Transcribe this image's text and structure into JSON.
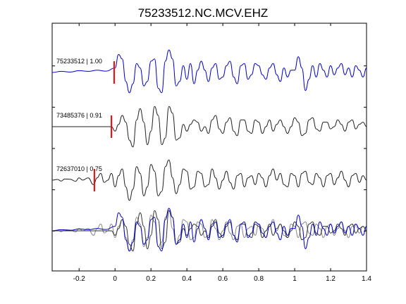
{
  "chart_data": {
    "type": "line",
    "title": "75233512.NC.MCV.EHZ",
    "xlabel": "",
    "ylabel": "",
    "xlim": [
      -0.35,
      1.4
    ],
    "grid": false,
    "x_ticks": [
      -0.2,
      0,
      0.2,
      0.4,
      0.6,
      0.8,
      1,
      1.2,
      1.4
    ],
    "x_tick_labels": [
      "-0.2",
      "0",
      "0.2",
      "0.4",
      "0.6",
      "0.8",
      "1",
      "1.2",
      "1.4"
    ],
    "series": [
      {
        "label": "75233512 | 1.00",
        "color": "#0000cc",
        "pick_time": -0.005,
        "samples": [
          [
            -0.35,
            0.0
          ],
          [
            -0.3,
            0.05
          ],
          [
            -0.25,
            0.02
          ],
          [
            -0.2,
            0.08
          ],
          [
            -0.15,
            0.05
          ],
          [
            -0.1,
            0.1
          ],
          [
            -0.05,
            0.06
          ],
          [
            0.0,
            0.2
          ],
          [
            0.02,
            0.8
          ],
          [
            0.04,
            0.6
          ],
          [
            0.06,
            -0.4
          ],
          [
            0.08,
            -0.9
          ],
          [
            0.1,
            -0.5
          ],
          [
            0.12,
            0.4
          ],
          [
            0.14,
            0.2
          ],
          [
            0.16,
            -0.6
          ],
          [
            0.18,
            -0.4
          ],
          [
            0.2,
            0.5
          ],
          [
            0.22,
            0.6
          ],
          [
            0.24,
            -0.7
          ],
          [
            0.26,
            -0.9
          ],
          [
            0.28,
            0.5
          ],
          [
            0.3,
            1.0
          ],
          [
            0.32,
            0.6
          ],
          [
            0.34,
            -0.6
          ],
          [
            0.36,
            -0.4
          ],
          [
            0.38,
            0.3
          ],
          [
            0.4,
            -0.3
          ],
          [
            0.42,
            0.4
          ],
          [
            0.44,
            -0.5
          ],
          [
            0.46,
            0.1
          ],
          [
            0.48,
            0.5
          ],
          [
            0.5,
            0.1
          ],
          [
            0.52,
            -0.4
          ],
          [
            0.54,
            0.2
          ],
          [
            0.56,
            0.4
          ],
          [
            0.58,
            -0.3
          ],
          [
            0.6,
            -0.2
          ],
          [
            0.62,
            0.3
          ],
          [
            0.64,
            0.5
          ],
          [
            0.66,
            -0.2
          ],
          [
            0.68,
            -0.5
          ],
          [
            0.7,
            0.3
          ],
          [
            0.72,
            0.4
          ],
          [
            0.74,
            -0.3
          ],
          [
            0.76,
            -0.1
          ],
          [
            0.78,
            0.4
          ],
          [
            0.8,
            0.3
          ],
          [
            0.82,
            -0.1
          ],
          [
            0.84,
            -0.3
          ],
          [
            0.86,
            0.2
          ],
          [
            0.88,
            0.4
          ],
          [
            0.9,
            -0.1
          ],
          [
            0.92,
            -0.4
          ],
          [
            0.94,
            0.2
          ],
          [
            0.96,
            -0.2
          ],
          [
            0.98,
            0.1
          ],
          [
            1.0,
            0.1
          ],
          [
            1.02,
            0.7
          ],
          [
            1.04,
            0.2
          ],
          [
            1.06,
            -0.8
          ],
          [
            1.08,
            -0.3
          ],
          [
            1.1,
            0.3
          ],
          [
            1.12,
            -0.2
          ],
          [
            1.14,
            0.4
          ],
          [
            1.16,
            0.1
          ],
          [
            1.18,
            -0.2
          ],
          [
            1.2,
            0.3
          ],
          [
            1.22,
            -0.1
          ],
          [
            1.24,
            0.2
          ],
          [
            1.26,
            0.4
          ],
          [
            1.28,
            -0.1
          ],
          [
            1.3,
            0.2
          ],
          [
            1.32,
            -0.2
          ],
          [
            1.34,
            0.3
          ],
          [
            1.36,
            0.1
          ],
          [
            1.38,
            -0.2
          ],
          [
            1.4,
            0.2
          ]
        ]
      },
      {
        "label": "73485376 | 0.91",
        "color": "#222222",
        "pick_time": -0.02,
        "samples": [
          [
            -0.35,
            0.0
          ],
          [
            -0.3,
            0.0
          ],
          [
            -0.25,
            0.0
          ],
          [
            -0.2,
            0.0
          ],
          [
            -0.15,
            0.0
          ],
          [
            -0.1,
            0.0
          ],
          [
            -0.05,
            0.0
          ],
          [
            -0.02,
            0.0
          ],
          [
            0.0,
            -0.2
          ],
          [
            0.02,
            0.1
          ],
          [
            0.04,
            0.5
          ],
          [
            0.06,
            0.2
          ],
          [
            0.08,
            -0.6
          ],
          [
            0.1,
            -0.9
          ],
          [
            0.12,
            0.3
          ],
          [
            0.14,
            0.8
          ],
          [
            0.16,
            0.2
          ],
          [
            0.18,
            -0.8
          ],
          [
            0.2,
            -0.2
          ],
          [
            0.22,
            0.9
          ],
          [
            0.24,
            0.5
          ],
          [
            0.26,
            -0.8
          ],
          [
            0.28,
            -0.5
          ],
          [
            0.3,
            0.9
          ],
          [
            0.32,
            0.6
          ],
          [
            0.34,
            -0.6
          ],
          [
            0.36,
            -0.5
          ],
          [
            0.38,
            0.1
          ],
          [
            0.4,
            -0.2
          ],
          [
            0.42,
            0.1
          ],
          [
            0.44,
            0.3
          ],
          [
            0.46,
            0.2
          ],
          [
            0.48,
            -0.2
          ],
          [
            0.5,
            0.0
          ],
          [
            0.52,
            -0.3
          ],
          [
            0.54,
            0.3
          ],
          [
            0.56,
            0.5
          ],
          [
            0.58,
            -0.1
          ],
          [
            0.6,
            -0.3
          ],
          [
            0.62,
            0.2
          ],
          [
            0.64,
            0.4
          ],
          [
            0.66,
            -0.2
          ],
          [
            0.68,
            -0.4
          ],
          [
            0.7,
            0.3
          ],
          [
            0.72,
            0.3
          ],
          [
            0.74,
            -0.2
          ],
          [
            0.76,
            -0.3
          ],
          [
            0.78,
            0.3
          ],
          [
            0.8,
            0.2
          ],
          [
            0.82,
            -0.3
          ],
          [
            0.84,
            0.0
          ],
          [
            0.86,
            0.3
          ],
          [
            0.88,
            -0.2
          ],
          [
            0.9,
            0.1
          ],
          [
            0.92,
            0.3
          ],
          [
            0.94,
            0.0
          ],
          [
            0.96,
            -0.3
          ],
          [
            0.98,
            0.0
          ],
          [
            1.0,
            0.4
          ],
          [
            1.02,
            0.2
          ],
          [
            1.04,
            -0.4
          ],
          [
            1.06,
            -0.3
          ],
          [
            1.08,
            0.3
          ],
          [
            1.1,
            0.4
          ],
          [
            1.12,
            -0.1
          ],
          [
            1.14,
            -0.2
          ],
          [
            1.16,
            0.2
          ],
          [
            1.18,
            0.2
          ],
          [
            1.2,
            -0.1
          ],
          [
            1.22,
            0.0
          ],
          [
            1.24,
            0.3
          ],
          [
            1.26,
            0.1
          ],
          [
            1.28,
            -0.2
          ],
          [
            1.3,
            0.2
          ],
          [
            1.32,
            0.3
          ],
          [
            1.34,
            -0.1
          ],
          [
            1.36,
            0.1
          ],
          [
            1.38,
            0.2
          ],
          [
            1.4,
            0.0
          ]
        ]
      },
      {
        "label": "72637010 | 0.75",
        "color": "#222222",
        "pick_time": -0.115,
        "samples": [
          [
            -0.35,
            0.0
          ],
          [
            -0.32,
            0.03
          ],
          [
            -0.3,
            -0.04
          ],
          [
            -0.28,
            0.05
          ],
          [
            -0.25,
            0.04
          ],
          [
            -0.22,
            -0.05
          ],
          [
            -0.2,
            0.1
          ],
          [
            -0.18,
            0.0
          ],
          [
            -0.15,
            0.1
          ],
          [
            -0.12,
            -0.2
          ],
          [
            -0.1,
            0.1
          ],
          [
            -0.08,
            0.3
          ],
          [
            -0.06,
            -0.1
          ],
          [
            -0.04,
            0.0
          ],
          [
            -0.02,
            0.3
          ],
          [
            0.0,
            -0.3
          ],
          [
            0.02,
            0.2
          ],
          [
            0.04,
            0.5
          ],
          [
            0.06,
            -0.3
          ],
          [
            0.08,
            -0.9
          ],
          [
            0.1,
            -0.4
          ],
          [
            0.12,
            0.6
          ],
          [
            0.14,
            0.3
          ],
          [
            0.16,
            -0.7
          ],
          [
            0.18,
            -0.3
          ],
          [
            0.2,
            0.7
          ],
          [
            0.22,
            0.4
          ],
          [
            0.24,
            -0.7
          ],
          [
            0.26,
            -0.5
          ],
          [
            0.28,
            0.6
          ],
          [
            0.3,
            0.9
          ],
          [
            0.32,
            0.1
          ],
          [
            0.34,
            -0.6
          ],
          [
            0.36,
            -0.2
          ],
          [
            0.38,
            0.5
          ],
          [
            0.4,
            0.4
          ],
          [
            0.42,
            -0.4
          ],
          [
            0.44,
            -0.3
          ],
          [
            0.46,
            0.4
          ],
          [
            0.48,
            0.3
          ],
          [
            0.5,
            -0.3
          ],
          [
            0.52,
            -0.2
          ],
          [
            0.54,
            0.5
          ],
          [
            0.56,
            0.1
          ],
          [
            0.58,
            -0.4
          ],
          [
            0.6,
            0.0
          ],
          [
            0.62,
            0.4
          ],
          [
            0.64,
            -0.1
          ],
          [
            0.66,
            -0.4
          ],
          [
            0.68,
            0.2
          ],
          [
            0.7,
            0.3
          ],
          [
            0.72,
            -0.3
          ],
          [
            0.74,
            0.1
          ],
          [
            0.76,
            0.2
          ],
          [
            0.78,
            -0.2
          ],
          [
            0.8,
            0.3
          ],
          [
            0.82,
            0.1
          ],
          [
            0.84,
            -0.3
          ],
          [
            0.86,
            0.2
          ],
          [
            0.88,
            0.5
          ],
          [
            0.9,
            0.0
          ],
          [
            0.92,
            0.3
          ],
          [
            0.94,
            -0.2
          ],
          [
            0.96,
            -0.3
          ],
          [
            0.98,
            0.3
          ],
          [
            1.0,
            0.2
          ],
          [
            1.02,
            -0.3
          ],
          [
            1.04,
            0.3
          ],
          [
            1.06,
            0.4
          ],
          [
            1.08,
            -0.1
          ],
          [
            1.1,
            -0.2
          ],
          [
            1.12,
            0.3
          ],
          [
            1.14,
            0.1
          ],
          [
            1.16,
            -0.3
          ],
          [
            1.18,
            0.2
          ],
          [
            1.2,
            0.3
          ],
          [
            1.22,
            -0.2
          ],
          [
            1.24,
            0.1
          ],
          [
            1.26,
            0.4
          ],
          [
            1.28,
            0.0
          ],
          [
            1.3,
            -0.3
          ],
          [
            1.32,
            0.2
          ],
          [
            1.34,
            0.3
          ],
          [
            1.36,
            -0.1
          ],
          [
            1.38,
            0.2
          ],
          [
            1.4,
            0.0
          ]
        ]
      }
    ]
  }
}
